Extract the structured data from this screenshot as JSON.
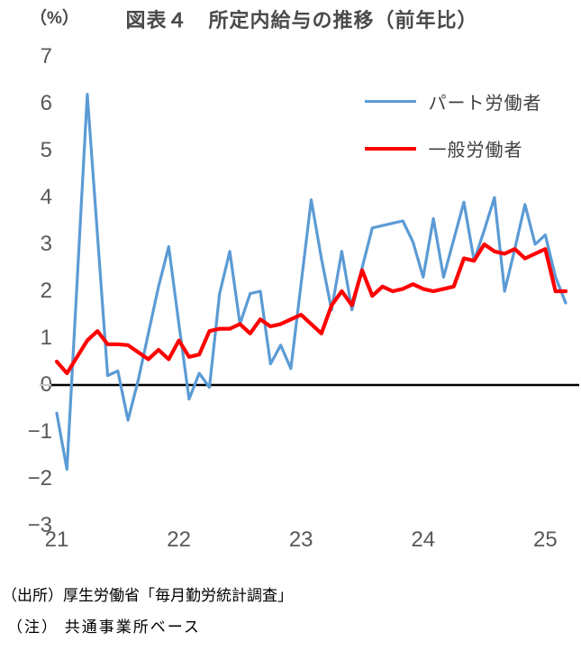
{
  "title": {
    "unit_label": "（%）",
    "text": "図表４　所定内給与の推移（前年比）"
  },
  "legend": [
    {
      "label": "パート労働者",
      "color": "#5B9BD5"
    },
    {
      "label": "一般労働者",
      "color": "#FF0000"
    }
  ],
  "source": "（出所）厚生労働省「毎月勤労統計調査」",
  "note": "（注） 共通事業所ベース",
  "chart_data": {
    "type": "line",
    "title": "図表４　所定内給与の推移（前年比）",
    "ylabel": "（%）",
    "x_unit": "month",
    "x_start": "2021-01",
    "x_end": "2025-03",
    "x_tick_labels": [
      "21",
      "22",
      "23",
      "24",
      "25"
    ],
    "x_tick_month_indices": [
      0,
      12,
      24,
      36,
      48
    ],
    "y_ticks": [
      7,
      6,
      5,
      4,
      3,
      2,
      1,
      0,
      -1,
      -2,
      -3
    ],
    "ylim": [
      -3,
      7
    ],
    "grid": false,
    "zero_axis": true,
    "legend_position": "upper right",
    "series": [
      {
        "name": "パート労働者",
        "color": "#5B9BD5",
        "values": [
          -0.6,
          -1.8,
          2.2,
          6.2,
          3.2,
          0.2,
          0.3,
          -0.75,
          0.1,
          1.1,
          2.1,
          2.95,
          1.3,
          -0.3,
          0.25,
          -0.05,
          1.95,
          2.85,
          1.3,
          1.95,
          2.0,
          0.45,
          0.85,
          0.35,
          2.15,
          3.95,
          2.7,
          1.6,
          2.85,
          1.6,
          2.5,
          3.35,
          3.4,
          3.45,
          3.5,
          3.05,
          2.3,
          3.55,
          2.3,
          3.1,
          3.9,
          2.65,
          3.3,
          4.0,
          2.0,
          2.9,
          3.85,
          3.0,
          3.2,
          2.3,
          1.75
        ]
      },
      {
        "name": "一般労働者",
        "color": "#FF0000",
        "values": [
          0.5,
          0.25,
          0.6,
          0.95,
          1.15,
          0.87,
          0.87,
          0.85,
          0.7,
          0.55,
          0.75,
          0.55,
          0.95,
          0.6,
          0.65,
          1.15,
          1.2,
          1.2,
          1.3,
          1.1,
          1.4,
          1.25,
          1.3,
          1.4,
          1.5,
          1.3,
          1.1,
          1.7,
          2.0,
          1.7,
          2.45,
          1.9,
          2.1,
          2.0,
          2.05,
          2.15,
          2.05,
          2.0,
          2.05,
          2.1,
          2.7,
          2.65,
          3.0,
          2.85,
          2.8,
          2.9,
          2.7,
          2.8,
          2.9,
          2.0,
          2.0
        ]
      }
    ]
  }
}
